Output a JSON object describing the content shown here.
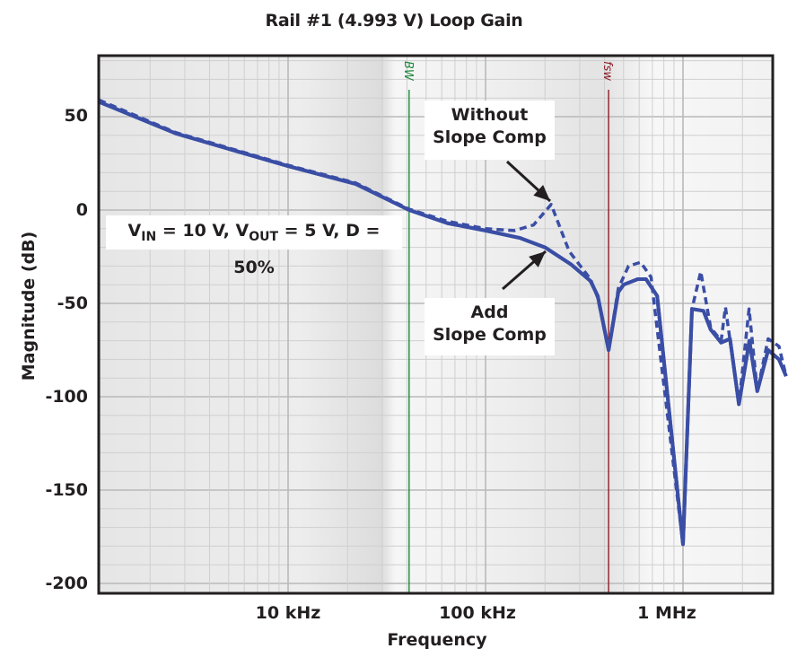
{
  "title": "Rail #1 (4.993 V) Loop Gain",
  "colors": {
    "curve": "#3a4ea5",
    "bw_line": "#1e8a3c",
    "fsw_line": "#8b1c26",
    "border": "#231f20",
    "grid_major": "#b9b9b9",
    "grid_minor": "#cfcfcf",
    "plot_bg_light": "#f4f4f4",
    "plot_bg_dark": "#e2e2e2"
  },
  "annotations": {
    "conditions": "V_IN = 10 V, V_OUT = 5 V, D = 50%",
    "conditions_parts": {
      "v": "V",
      "in": "IN",
      "eq1": " = 10 V, ",
      "v2": "V",
      "out": "OUT",
      "eq2": " = 5 V, D = 50%"
    },
    "without_line1": "Without",
    "without_line2": "Slope Comp",
    "add_line1": "Add",
    "add_line2": "Slope Comp",
    "bw_marker": "BW",
    "fsw_marker": "fsw"
  },
  "chart_data": {
    "type": "line",
    "title": "Rail #1 (4.993 V) Loop Gain",
    "xlabel": "Frequency",
    "ylabel": "Magnitude (dB)",
    "xscale": "log",
    "xlim_hz": [
      1100,
      500000000
    ],
    "ylim": [
      -205,
      83
    ],
    "x_ticks": [
      {
        "value": 10000,
        "label": "10 kHz"
      },
      {
        "value": 100000,
        "label": "100 kHz"
      },
      {
        "value": 1000000,
        "label": "1 MHz"
      }
    ],
    "y_ticks": [
      50,
      0,
      -50,
      -100,
      -150,
      -200
    ],
    "grid": true,
    "markers": [
      {
        "name": "BW",
        "freq_hz": 41000,
        "color": "#1e8a3c"
      },
      {
        "name": "fsw",
        "freq_hz": 420000,
        "color": "#8b1c26"
      }
    ],
    "series": [
      {
        "name": "Add Slope Comp",
        "style": "solid",
        "points": [
          [
            1100,
            58
          ],
          [
            2700,
            41
          ],
          [
            10000,
            23.5
          ],
          [
            22000,
            14
          ],
          [
            41000,
            0
          ],
          [
            64000,
            -7
          ],
          [
            100000,
            -11
          ],
          [
            150000,
            -15
          ],
          [
            200000,
            -20
          ],
          [
            270000,
            -29
          ],
          [
            340000,
            -38
          ],
          [
            370000,
            -46
          ],
          [
            420000,
            -75
          ],
          [
            470000,
            -44
          ],
          [
            500000,
            -40
          ],
          [
            590000,
            -37
          ],
          [
            650000,
            -37
          ],
          [
            740000,
            -46
          ],
          [
            1000000,
            -179
          ],
          [
            1110000,
            -53
          ],
          [
            1270000,
            -54
          ],
          [
            1380000,
            -64
          ],
          [
            1560000,
            -71
          ],
          [
            1730000,
            -69
          ],
          [
            1920000,
            -104
          ],
          [
            2170000,
            -70
          ],
          [
            2380000,
            -97
          ],
          [
            2700000,
            -75
          ],
          [
            3060000,
            -80
          ],
          [
            3330000,
            -89
          ]
        ]
      },
      {
        "name": "Without Slope Comp",
        "style": "dashed",
        "points": [
          [
            1100,
            59
          ],
          [
            2700,
            41.5
          ],
          [
            10000,
            24
          ],
          [
            22000,
            14.5
          ],
          [
            41000,
            0.5
          ],
          [
            64000,
            -6
          ],
          [
            100000,
            -10
          ],
          [
            140000,
            -11
          ],
          [
            175000,
            -8
          ],
          [
            215000,
            3
          ],
          [
            265000,
            -22
          ],
          [
            340000,
            -37
          ],
          [
            370000,
            -47
          ],
          [
            420000,
            -75
          ],
          [
            470000,
            -42
          ],
          [
            530000,
            -30
          ],
          [
            610000,
            -28
          ],
          [
            690000,
            -36
          ],
          [
            710000,
            -48
          ],
          [
            1000000,
            -179
          ],
          [
            1110000,
            -53
          ],
          [
            1230000,
            -33
          ],
          [
            1380000,
            -63
          ],
          [
            1560000,
            -70
          ],
          [
            1640000,
            -52
          ],
          [
            1920000,
            -104
          ],
          [
            2160000,
            -53
          ],
          [
            2380000,
            -97
          ],
          [
            2700000,
            -69
          ],
          [
            3060000,
            -73
          ],
          [
            3330000,
            -89
          ]
        ]
      }
    ]
  }
}
